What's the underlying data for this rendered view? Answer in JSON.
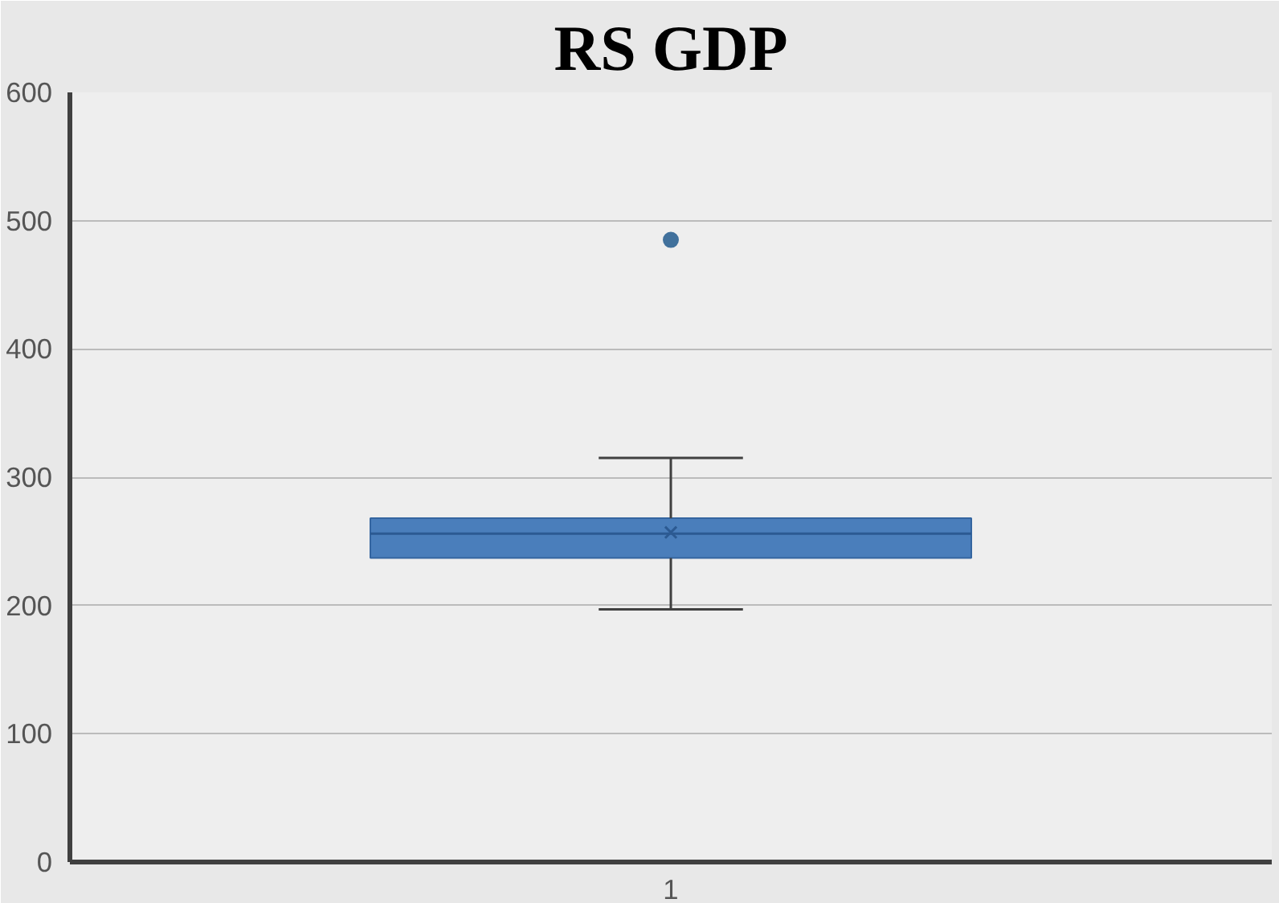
{
  "chart_data": {
    "type": "box",
    "title": "RS GDP",
    "categories": [
      "1"
    ],
    "series": [
      {
        "color": "#4a7ebb",
        "boxes": [
          {
            "low": 197,
            "q1": 237,
            "median": 256,
            "q3": 268,
            "high": 315,
            "mean": 257,
            "outliers": [
              485
            ]
          }
        ]
      }
    ],
    "ylim": [
      0,
      600
    ],
    "yticks": [
      0,
      100,
      200,
      300,
      400,
      500,
      600
    ],
    "grid": "y",
    "marker": "cross"
  }
}
